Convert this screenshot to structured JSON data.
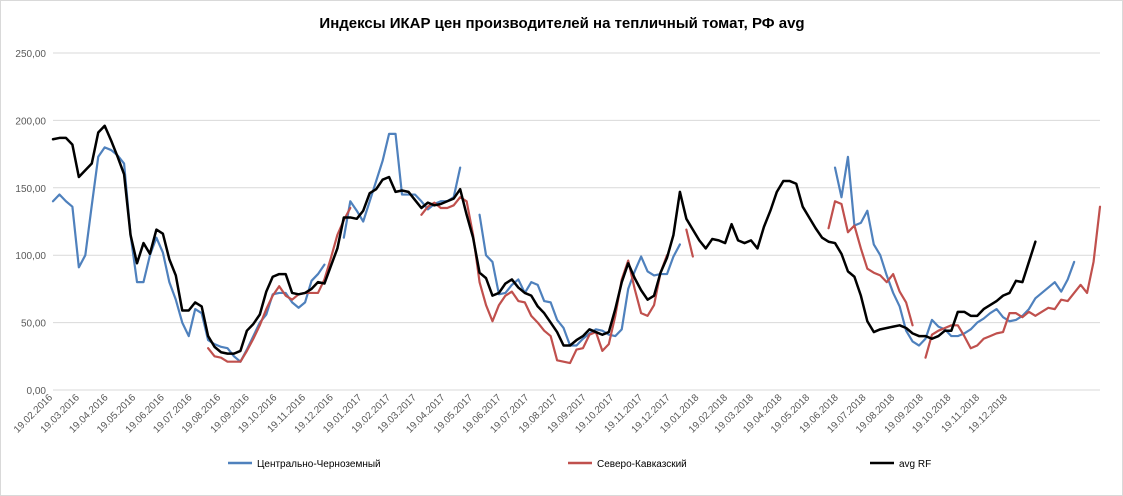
{
  "chart_data": {
    "type": "line",
    "title": "Индексы ИКАР цен производителей на  тепличный томат, РФ avg",
    "xlabel": "",
    "ylabel": "",
    "ylim": [
      0,
      250
    ],
    "yticks": [
      "0,00",
      "50,00",
      "100,00",
      "150,00",
      "200,00",
      "250,00"
    ],
    "grid": true,
    "legend_position": "bottom",
    "x_start": "2016-02-19",
    "x_step_days": 7,
    "x_tick_labels": [
      "19.02.2016",
      "19.03.2016",
      "19.04.2016",
      "19.05.2016",
      "19.06.2016",
      "19.07.2016",
      "19.08.2016",
      "19.09.2016",
      "19.10.2016",
      "19.11.2016",
      "19.12.2016",
      "19.01.2017",
      "19.02.2017",
      "19.03.2017",
      "19.04.2017",
      "19.05.2017",
      "19.06.2017",
      "19.07.2017",
      "19.08.2017",
      "19.09.2017",
      "19.10.2017",
      "19.11.2017",
      "19.12.2017",
      "19.01.2018",
      "19.02.2018",
      "19.03.2018",
      "19.04.2018",
      "19.05.2018",
      "19.06.2018",
      "19.07.2018",
      "19.08.2018",
      "19.09.2018",
      "19.10.2018",
      "19.11.2018",
      "19.12.2018"
    ],
    "series": [
      {
        "name": "Центрально-Черноземный",
        "color": "#4F81BD",
        "values": [
          140,
          145,
          140,
          136,
          91,
          100,
          137,
          173,
          180,
          178,
          174,
          168,
          115,
          80,
          80,
          100,
          113,
          102,
          80,
          67,
          50,
          40,
          60,
          57,
          37,
          34,
          32,
          31,
          25,
          21,
          30,
          40,
          50,
          56,
          71,
          72,
          72,
          65,
          61,
          65,
          81,
          86,
          93,
          null,
          null,
          113,
          140,
          133,
          125,
          140,
          155,
          170,
          190,
          190,
          145,
          145,
          145,
          140,
          134,
          138,
          140,
          140,
          143,
          165,
          null,
          null,
          130,
          100,
          95,
          71,
          72,
          78,
          82,
          72,
          80,
          78,
          66,
          65,
          52,
          46,
          33,
          33,
          38,
          42,
          45,
          44,
          41,
          40,
          45,
          75,
          88,
          99,
          88,
          85,
          86,
          86,
          99,
          108,
          null,
          null,
          null,
          null,
          null,
          null,
          null,
          null,
          null,
          null,
          null,
          null,
          null,
          null,
          null,
          null,
          null,
          null,
          null,
          null,
          null,
          null,
          null,
          165,
          143,
          173,
          122,
          124,
          133,
          108,
          100,
          85,
          72,
          62,
          44,
          36,
          33,
          38,
          52,
          47,
          45,
          40,
          40,
          42,
          45,
          50,
          53,
          57,
          60,
          54,
          51,
          52,
          55,
          60,
          68,
          72,
          76,
          80,
          73,
          82,
          95
        ]
      },
      {
        "name": "Северо-Кавказский",
        "color": "#C0504D",
        "values": [
          null,
          null,
          null,
          null,
          null,
          null,
          null,
          null,
          null,
          null,
          null,
          null,
          null,
          null,
          null,
          null,
          null,
          null,
          null,
          null,
          null,
          null,
          null,
          null,
          31,
          25,
          24,
          21,
          21,
          21,
          29,
          38,
          48,
          60,
          70,
          77,
          70,
          67,
          71,
          72,
          72,
          72,
          82,
          98,
          115,
          126,
          135,
          null,
          null,
          null,
          null,
          null,
          null,
          null,
          null,
          null,
          null,
          130,
          136,
          139,
          135,
          135,
          137,
          143,
          140,
          115,
          80,
          63,
          51,
          63,
          70,
          73,
          66,
          65,
          55,
          50,
          44,
          40,
          22,
          21,
          20,
          30,
          31,
          41,
          43,
          29,
          34,
          55,
          82,
          96,
          75,
          57,
          55,
          63,
          87,
          100,
          null,
          null,
          119,
          99,
          null,
          null,
          null,
          null,
          null,
          null,
          null,
          null,
          null,
          null,
          null,
          null,
          null,
          null,
          null,
          null,
          null,
          null,
          null,
          null,
          120,
          140,
          138,
          117,
          122,
          105,
          90,
          87,
          85,
          80,
          86,
          73,
          65,
          48,
          null,
          24,
          41,
          44,
          46,
          48,
          48,
          40,
          31,
          33,
          38,
          40,
          42,
          43,
          57,
          57,
          54,
          58,
          55,
          58,
          61,
          60,
          67,
          66,
          72,
          78,
          72,
          95,
          136
        ]
      },
      {
        "name": "avg RF",
        "color": "#000000",
        "values": [
          186,
          187,
          187,
          182,
          158,
          163,
          168,
          191,
          196,
          185,
          173,
          160,
          115,
          94,
          109,
          101,
          119,
          116,
          97,
          85,
          59,
          59,
          65,
          62,
          40,
          32,
          28,
          27,
          27,
          29,
          44,
          49,
          56,
          73,
          84,
          86,
          86,
          72,
          71,
          72,
          75,
          80,
          79,
          92,
          105,
          128,
          128,
          127,
          133,
          146,
          149,
          156,
          158,
          147,
          148,
          147,
          141,
          135,
          139,
          137,
          138,
          140,
          142,
          149,
          130,
          113,
          87,
          83,
          70,
          72,
          79,
          82,
          76,
          72,
          70,
          62,
          57,
          50,
          43,
          33,
          33,
          37,
          40,
          45,
          43,
          41,
          43,
          60,
          80,
          94,
          83,
          74,
          67,
          70,
          87,
          98,
          115,
          147,
          127,
          119,
          111,
          105,
          112,
          111,
          109,
          123,
          111,
          109,
          111,
          105,
          121,
          133,
          147,
          155,
          155,
          153,
          136,
          128,
          120,
          113,
          110,
          109,
          101,
          88,
          84,
          70,
          51,
          43,
          45,
          46,
          47,
          48,
          46,
          42,
          40,
          40,
          38,
          40,
          44,
          44,
          58,
          58,
          55,
          55,
          60,
          63,
          66,
          70,
          72,
          81,
          80,
          95,
          110
        ]
      }
    ]
  }
}
